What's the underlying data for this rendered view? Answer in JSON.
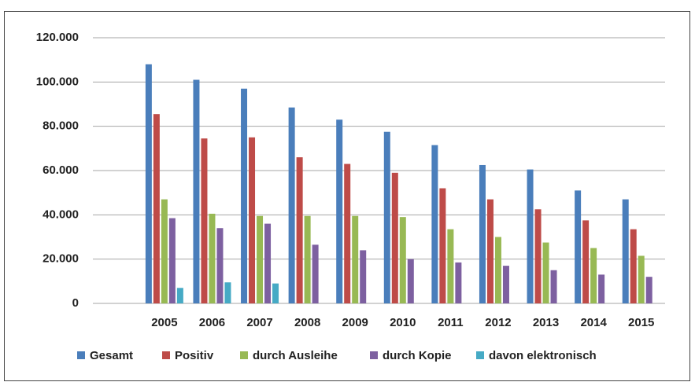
{
  "chart_data": {
    "type": "bar",
    "categories": [
      null,
      "2005",
      "2006",
      "2007",
      "2008",
      "2009",
      "2010",
      "2011",
      "2012",
      "2013",
      "2014",
      "2015"
    ],
    "series": [
      {
        "name": "Gesamt",
        "color": "#4a7ebb",
        "values": [
          null,
          108000,
          101000,
          97000,
          88500,
          83000,
          77500,
          71500,
          62500,
          60500,
          51000,
          47000
        ]
      },
      {
        "name": "Positiv",
        "color": "#be4b48",
        "values": [
          null,
          85500,
          74500,
          75000,
          66000,
          63000,
          59000,
          52000,
          47000,
          42500,
          37500,
          33500
        ]
      },
      {
        "name": "durch Ausleihe",
        "color": "#98b954",
        "values": [
          null,
          47000,
          40500,
          39500,
          39500,
          39500,
          39000,
          33500,
          30000,
          27500,
          25000,
          21500
        ]
      },
      {
        "name": "durch Kopie",
        "color": "#7d60a0",
        "values": [
          null,
          38500,
          34000,
          36000,
          26500,
          24000,
          20000,
          18500,
          17000,
          15000,
          13000,
          12000
        ]
      },
      {
        "name": "davon elektronisch",
        "color": "#46aac5",
        "values": [
          null,
          7000,
          9500,
          9000,
          null,
          null,
          null,
          null,
          null,
          null,
          null,
          null
        ]
      }
    ],
    "ylim": [
      0,
      120000
    ],
    "yticks": [
      0,
      {
        "value": 20000,
        "label": "20.000"
      },
      {
        "value": 40000,
        "label": "40.000"
      },
      {
        "value": 60000,
        "label": "60.000"
      },
      {
        "value": 80000,
        "label": "80.000"
      },
      {
        "value": 100000,
        "label": "100.000"
      },
      {
        "value": 120000,
        "label": "120.000"
      }
    ],
    "grid": true,
    "legend": "bottom"
  }
}
